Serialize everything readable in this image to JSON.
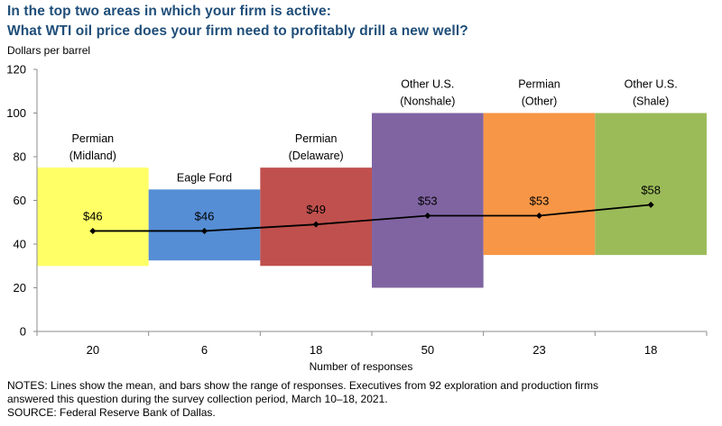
{
  "header": {
    "title_line1": "In the top two areas in which your firm is active:",
    "title_line2": "What WTI oil price does your firm need to profitably drill a new well?",
    "unit_label": "Dollars per barrel"
  },
  "chart_data": {
    "type": "bar",
    "subtype": "floating-range-bars-with-mean-line",
    "title": "In the top two areas in which your firm is active: What WTI oil price does your firm need to profitably drill a new well?",
    "ylabel": "Dollars per barrel",
    "xlabel": "Number of responses",
    "ylim": [
      0,
      120
    ],
    "yticks": [
      0,
      20,
      40,
      60,
      80,
      100,
      120
    ],
    "grid": false,
    "categories": [
      "Permian (Midland)",
      "Eagle Ford",
      "Permian (Delaware)",
      "Other U.S. (Nonshale)",
      "Permian (Other)",
      "Other U.S. (Shale)"
    ],
    "category_label_lines": [
      [
        "Permian",
        "(Midland)"
      ],
      [
        "Eagle Ford"
      ],
      [
        "Permian",
        "(Delaware)"
      ],
      [
        "Other U.S.",
        "(Nonshale)"
      ],
      [
        "Permian",
        "(Other)"
      ],
      [
        "Other U.S.",
        "(Shale)"
      ]
    ],
    "responses": [
      "20",
      "6",
      "18",
      "50",
      "23",
      "18"
    ],
    "series": [
      {
        "name": "Range low",
        "values": [
          30,
          32.5,
          30,
          20,
          35,
          35
        ]
      },
      {
        "name": "Range high",
        "values": [
          75,
          65,
          75,
          100,
          100,
          100
        ]
      },
      {
        "name": "Mean",
        "values": [
          46,
          46,
          49,
          53,
          53,
          58
        ],
        "labels": [
          "$46",
          "$46",
          "$49",
          "$53",
          "$53",
          "$58"
        ]
      }
    ],
    "colors": [
      "#ffff66",
      "#558ed5",
      "#c0504d",
      "#8064a2",
      "#f79646",
      "#9bbb59"
    ],
    "mean_line_color": "#000000"
  },
  "footer": {
    "notes_line1": "NOTES: Lines show the mean, and bars show the range of responses. Executives from 92 exploration and production firms",
    "notes_line2": "answered this question during the survey collection period, March 10–18, 2021.",
    "source": "SOURCE: Federal Reserve Bank of Dallas."
  }
}
